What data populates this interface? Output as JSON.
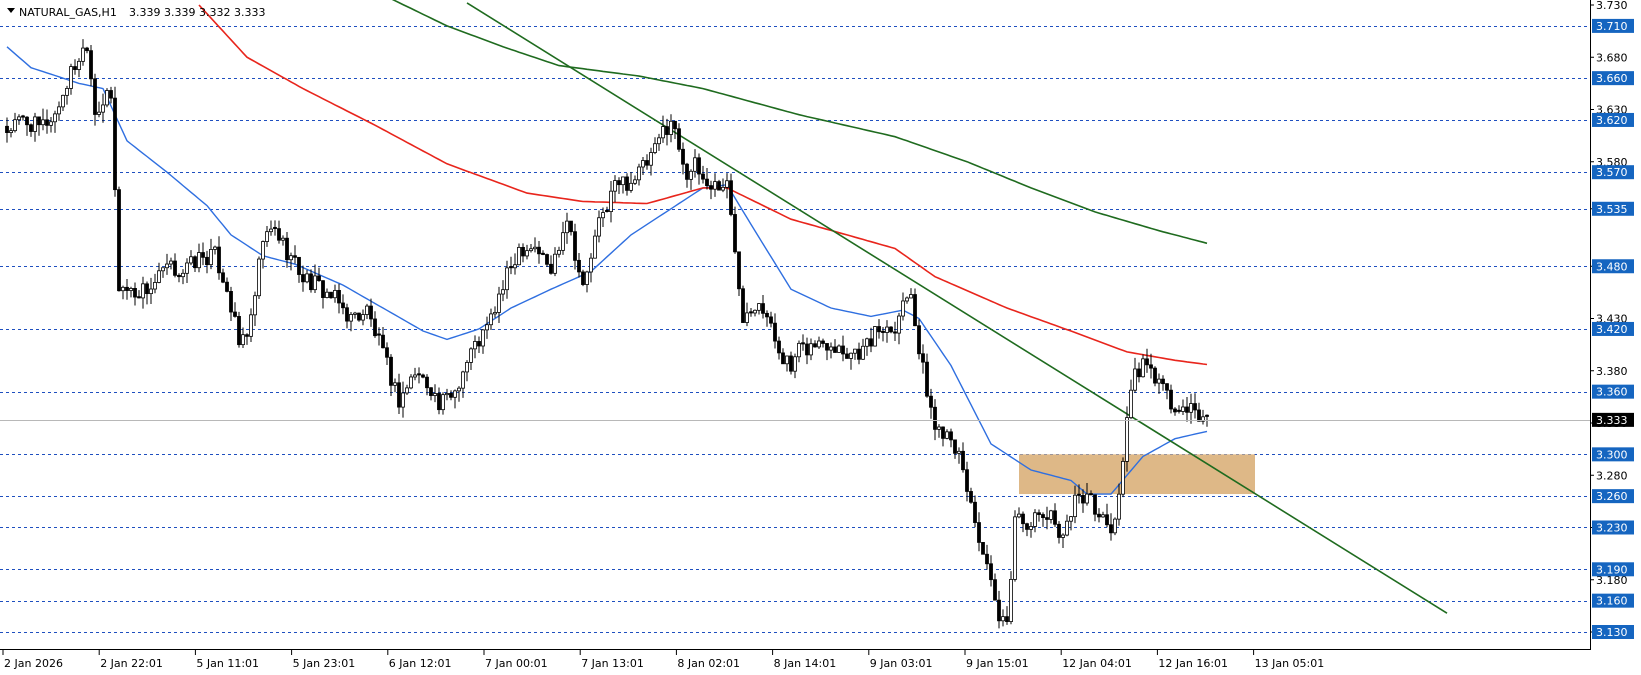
{
  "header": {
    "symbol": "NATURAL_GAS,H1",
    "ohlc": "3.339 3.339 3.332 3.333"
  },
  "colors": {
    "background": "#ffffff",
    "grid_level": "#1e4fbf",
    "level_label_bg": "#1565c0",
    "current_label_bg": "#000000",
    "ma_fast": "#2f6fe0",
    "ma_mid": "#e8251c",
    "ma_slow": "#1f6b1f",
    "trendline": "#1f6b1f",
    "zone": "#deb887",
    "candle_up": "#ffffff",
    "candle_down": "#000000"
  },
  "chart_data": {
    "type": "candlestick",
    "symbol": "NATURAL_GAS",
    "timeframe": "H1",
    "ylim": [
      3.115,
      3.735
    ],
    "y_ticks": [
      "3.730",
      "3.680",
      "3.630",
      "3.580",
      "3.535",
      "3.480",
      "3.430",
      "3.380",
      "3.330",
      "3.280",
      "3.230",
      "3.180",
      "3.130"
    ],
    "x_ticks": [
      "2 Jan 2026",
      "2 Jan 22:01",
      "5 Jan 11:01",
      "5 Jan 23:01",
      "6 Jan 12:01",
      "7 Jan 00:01",
      "7 Jan 13:01",
      "8 Jan 02:01",
      "8 Jan 14:01",
      "9 Jan 03:01",
      "9 Jan 15:01",
      "12 Jan 04:01",
      "12 Jan 16:01",
      "13 Jan 05:01"
    ],
    "level_lines": [
      "3.710",
      "3.660",
      "3.620",
      "3.570",
      "3.535",
      "3.480",
      "3.420",
      "3.360",
      "3.300",
      "3.260",
      "3.230",
      "3.190",
      "3.160",
      "3.130"
    ],
    "current_price": "3.333",
    "zone": {
      "low": 3.262,
      "high": 3.3,
      "start_bar": 253,
      "end_bar": 312
    },
    "trendline": [
      {
        "bar": 115,
        "price": 3.732
      },
      {
        "bar": 360,
        "price": 3.148
      }
    ],
    "candles_anchor_close": [
      [
        0,
        3.61
      ],
      [
        4,
        3.62
      ],
      [
        8,
        3.612
      ],
      [
        12,
        3.625
      ],
      [
        16,
        3.665
      ],
      [
        20,
        3.695
      ],
      [
        22,
        3.63
      ],
      [
        25,
        3.64
      ],
      [
        26,
        3.64
      ],
      [
        28,
        3.461
      ],
      [
        32,
        3.455
      ],
      [
        36,
        3.46
      ],
      [
        40,
        3.478
      ],
      [
        44,
        3.475
      ],
      [
        48,
        3.488
      ],
      [
        52,
        3.49
      ],
      [
        55,
        3.46
      ],
      [
        58,
        3.405
      ],
      [
        61,
        3.425
      ],
      [
        64,
        3.505
      ],
      [
        67,
        3.515
      ],
      [
        70,
        3.495
      ],
      [
        74,
        3.47
      ],
      [
        78,
        3.46
      ],
      [
        82,
        3.448
      ],
      [
        86,
        3.43
      ],
      [
        90,
        3.438
      ],
      [
        94,
        3.395
      ],
      [
        98,
        3.352
      ],
      [
        102,
        3.378
      ],
      [
        106,
        3.365
      ],
      [
        108,
        3.345
      ],
      [
        112,
        3.362
      ],
      [
        116,
        3.398
      ],
      [
        120,
        3.42
      ],
      [
        124,
        3.46
      ],
      [
        128,
        3.498
      ],
      [
        132,
        3.5
      ],
      [
        136,
        3.475
      ],
      [
        140,
        3.53
      ],
      [
        144,
        3.458
      ],
      [
        148,
        3.52
      ],
      [
        152,
        3.558
      ],
      [
        156,
        3.562
      ],
      [
        160,
        3.578
      ],
      [
        162,
        3.59
      ],
      [
        164,
        3.61
      ],
      [
        166,
        3.62
      ],
      [
        170,
        3.57
      ],
      [
        172,
        3.575
      ],
      [
        175,
        3.558
      ],
      [
        180,
        3.558
      ],
      [
        184,
        3.435
      ],
      [
        188,
        3.45
      ],
      [
        192,
        3.41
      ],
      [
        196,
        3.38
      ],
      [
        198,
        3.398
      ],
      [
        202,
        3.405
      ],
      [
        206,
        3.408
      ],
      [
        210,
        3.398
      ],
      [
        214,
        3.4
      ],
      [
        218,
        3.42
      ],
      [
        222,
        3.425
      ],
      [
        224,
        3.445
      ],
      [
        226,
        3.46
      ],
      [
        228,
        3.398
      ],
      [
        232,
        3.325
      ],
      [
        236,
        3.322
      ],
      [
        240,
        3.268
      ],
      [
        244,
        3.205
      ],
      [
        248,
        3.14
      ],
      [
        250,
        3.134
      ],
      [
        252,
        3.24
      ],
      [
        256,
        3.235
      ],
      [
        260,
        3.242
      ],
      [
        264,
        3.225
      ],
      [
        268,
        3.265
      ],
      [
        272,
        3.25
      ],
      [
        276,
        3.225
      ],
      [
        278,
        3.26
      ],
      [
        280,
        3.335
      ],
      [
        282,
        3.375
      ],
      [
        284,
        3.385
      ],
      [
        288,
        3.37
      ],
      [
        292,
        3.34
      ],
      [
        296,
        3.34
      ],
      [
        300,
        3.334
      ]
    ],
    "series": [
      {
        "name": "",
        "color": "#2f6fe0",
        "anchors": [
          [
            0,
            3.69
          ],
          [
            6,
            3.67
          ],
          [
            18,
            3.655
          ],
          [
            24,
            3.65
          ],
          [
            30,
            3.6
          ],
          [
            40,
            3.57
          ],
          [
            50,
            3.538
          ],
          [
            56,
            3.51
          ],
          [
            64,
            3.49
          ],
          [
            72,
            3.482
          ],
          [
            84,
            3.462
          ],
          [
            94,
            3.44
          ],
          [
            104,
            3.418
          ],
          [
            110,
            3.41
          ],
          [
            118,
            3.42
          ],
          [
            126,
            3.44
          ],
          [
            136,
            3.458
          ],
          [
            146,
            3.475
          ],
          [
            156,
            3.51
          ],
          [
            166,
            3.535
          ],
          [
            174,
            3.555
          ],
          [
            180,
            3.558
          ],
          [
            186,
            3.52
          ],
          [
            196,
            3.458
          ],
          [
            206,
            3.44
          ],
          [
            216,
            3.432
          ],
          [
            224,
            3.438
          ],
          [
            228,
            3.43
          ],
          [
            236,
            3.385
          ],
          [
            246,
            3.31
          ],
          [
            256,
            3.285
          ],
          [
            266,
            3.275
          ],
          [
            270,
            3.262
          ],
          [
            276,
            3.262
          ],
          [
            284,
            3.298
          ],
          [
            292,
            3.315
          ],
          [
            300,
            3.322
          ]
        ]
      },
      {
        "name": "",
        "color": "#e8251c",
        "anchors": [
          [
            48,
            3.73
          ],
          [
            60,
            3.68
          ],
          [
            74,
            3.65
          ],
          [
            92,
            3.615
          ],
          [
            110,
            3.578
          ],
          [
            130,
            3.55
          ],
          [
            144,
            3.542
          ],
          [
            160,
            3.54
          ],
          [
            174,
            3.555
          ],
          [
            180,
            3.555
          ],
          [
            196,
            3.525
          ],
          [
            210,
            3.51
          ],
          [
            222,
            3.497
          ],
          [
            232,
            3.47
          ],
          [
            250,
            3.44
          ],
          [
            266,
            3.418
          ],
          [
            280,
            3.398
          ],
          [
            292,
            3.39
          ],
          [
            300,
            3.386
          ]
        ]
      },
      {
        "name": "",
        "color": "#1f6b1f",
        "anchors": [
          [
            96,
            3.736
          ],
          [
            110,
            3.71
          ],
          [
            124,
            3.69
          ],
          [
            138,
            3.672
          ],
          [
            158,
            3.662
          ],
          [
            174,
            3.65
          ],
          [
            198,
            3.625
          ],
          [
            222,
            3.604
          ],
          [
            240,
            3.58
          ],
          [
            256,
            3.555
          ],
          [
            272,
            3.532
          ],
          [
            288,
            3.514
          ],
          [
            300,
            3.502
          ]
        ]
      }
    ]
  }
}
